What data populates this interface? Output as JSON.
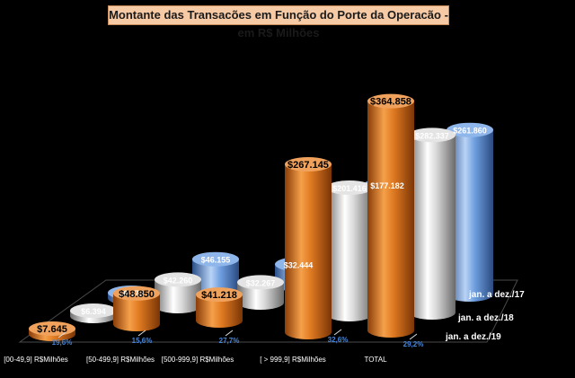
{
  "chart_data": {
    "type": "bar",
    "title": "Montante das Transacões em Função do Porte da Operacão - em R$ Milhões",
    "categories": [
      "[00-49,9] R$Milhões",
      "[50-499,9] R$Milhões",
      "[500-999,9] R$Milhões",
      "[ > 999,9] R$Milhões",
      "TOTAL"
    ],
    "series": [
      {
        "name": "jan. a dez./19",
        "color": "#e07b22",
        "values": [
          7.645,
          48.85,
          41.218,
          267.145,
          364.858
        ],
        "labels": [
          "$7.645",
          "$48.850",
          "$41.218",
          "$267.145",
          "$364.858"
        ]
      },
      {
        "name": "jan. a dez./18",
        "color": "#cfcfcf",
        "values": [
          6.394,
          42.26,
          32.267,
          201.416,
          282.337
        ],
        "labels": [
          "$6.394",
          "$42.260",
          "$32.267",
          "$201.416",
          "$282.337"
        ]
      },
      {
        "name": "jan. a dez./17",
        "color": "#5b8fd6",
        "values": [
          6.078,
          46.155,
          32.444,
          177.182,
          261.86
        ],
        "labels": [
          "$6.078",
          "$46.155",
          "$32.444",
          "$177.182",
          "$261.860"
        ]
      }
    ],
    "growth_labels": [
      "19,6%",
      "15,6%",
      "27,7%",
      "32,6%",
      "29,2%"
    ]
  }
}
